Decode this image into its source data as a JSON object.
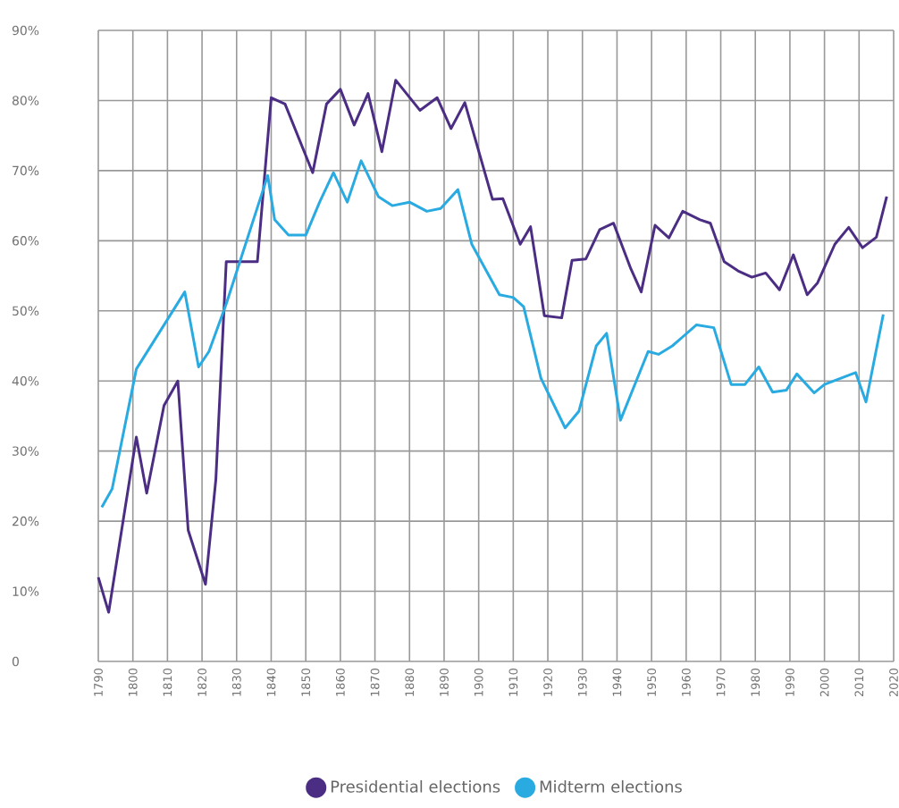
{
  "chart_data": {
    "type": "line",
    "xlim": [
      1790,
      2020
    ],
    "xticks": [
      1790,
      1800,
      1810,
      1820,
      1830,
      1840,
      1850,
      1860,
      1870,
      1880,
      1890,
      1900,
      1910,
      1920,
      1930,
      1940,
      1950,
      1960,
      1970,
      1980,
      1990,
      2000,
      2010,
      2020
    ],
    "ylim": [
      0,
      90
    ],
    "yticks": [
      0,
      {
        "value": 10,
        "label": "10%"
      },
      {
        "value": 20,
        "label": "20%"
      },
      {
        "value": 30,
        "label": "30%"
      },
      {
        "value": 40,
        "label": "40%"
      },
      {
        "value": 50,
        "label": "50%"
      },
      {
        "value": 60,
        "label": "60%"
      },
      {
        "value": 70,
        "label": "70%"
      },
      {
        "value": 80,
        "label": "80%"
      },
      {
        "value": 90,
        "label": "90%"
      }
    ],
    "grid": true,
    "legend": "bottom",
    "series": [
      {
        "name": "Presidential elections",
        "color": "#4b2e83",
        "x": [
          1790,
          1793,
          1801,
          1804,
          1809,
          1813,
          1816,
          1821,
          1824,
          1827,
          1836,
          1840,
          1844,
          1852,
          1856,
          1860,
          1864,
          1868,
          1872,
          1876,
          1883,
          1888,
          1892,
          1896,
          1904,
          1907,
          1912,
          1915,
          1919,
          1924,
          1927,
          1931,
          1935,
          1939,
          1944,
          1947,
          1951,
          1955,
          1959,
          1964,
          1967,
          1971,
          1975,
          1979,
          1983,
          1987,
          1991,
          1995,
          1998,
          2003,
          2007,
          2011,
          2015,
          2018
        ],
        "values": [
          12,
          7,
          32,
          24,
          36.5,
          40,
          18.7,
          11,
          26,
          57,
          57,
          80.4,
          79.5,
          69.7,
          79.5,
          81.6,
          76.5,
          81,
          72.7,
          82.9,
          78.6,
          80.4,
          76,
          79.7,
          65.9,
          66,
          59.5,
          62,
          49.3,
          49,
          57.2,
          57.4,
          61.6,
          62.5,
          56,
          52.7,
          62.2,
          60.4,
          64.2,
          63,
          62.5,
          57,
          55.7,
          54.8,
          55.4,
          53,
          58,
          52.3,
          54,
          59.5,
          61.9,
          59,
          60.5,
          66.3
        ]
      },
      {
        "name": "Midterm elections",
        "color": "#29abe2",
        "x": [
          1791,
          1794,
          1801,
          1815,
          1819,
          1822,
          1827,
          1839,
          1841,
          1845,
          1850,
          1854,
          1858,
          1862,
          1866,
          1871,
          1875,
          1880,
          1885,
          1889,
          1894,
          1898,
          1906,
          1910,
          1913,
          1918,
          1925,
          1929,
          1934,
          1937,
          1941,
          1949,
          1952,
          1956,
          1963,
          1968,
          1973,
          1977,
          1981,
          1985,
          1989,
          1992,
          1997,
          2000,
          2009,
          2012,
          2017
        ],
        "values": [
          22,
          24.6,
          41.7,
          52.7,
          42,
          44.2,
          51,
          69.3,
          63,
          60.8,
          60.8,
          65.5,
          69.7,
          65.5,
          71.4,
          66.3,
          65,
          65.5,
          64.2,
          64.6,
          67.3,
          59.5,
          52.3,
          51.9,
          50.6,
          40.4,
          33.3,
          35.7,
          45,
          46.8,
          34.4,
          44.2,
          43.8,
          45,
          48,
          47.6,
          39.5,
          39.5,
          42,
          38.4,
          38.7,
          41,
          38.3,
          39.5,
          41.2,
          37,
          49.5
        ]
      }
    ]
  }
}
